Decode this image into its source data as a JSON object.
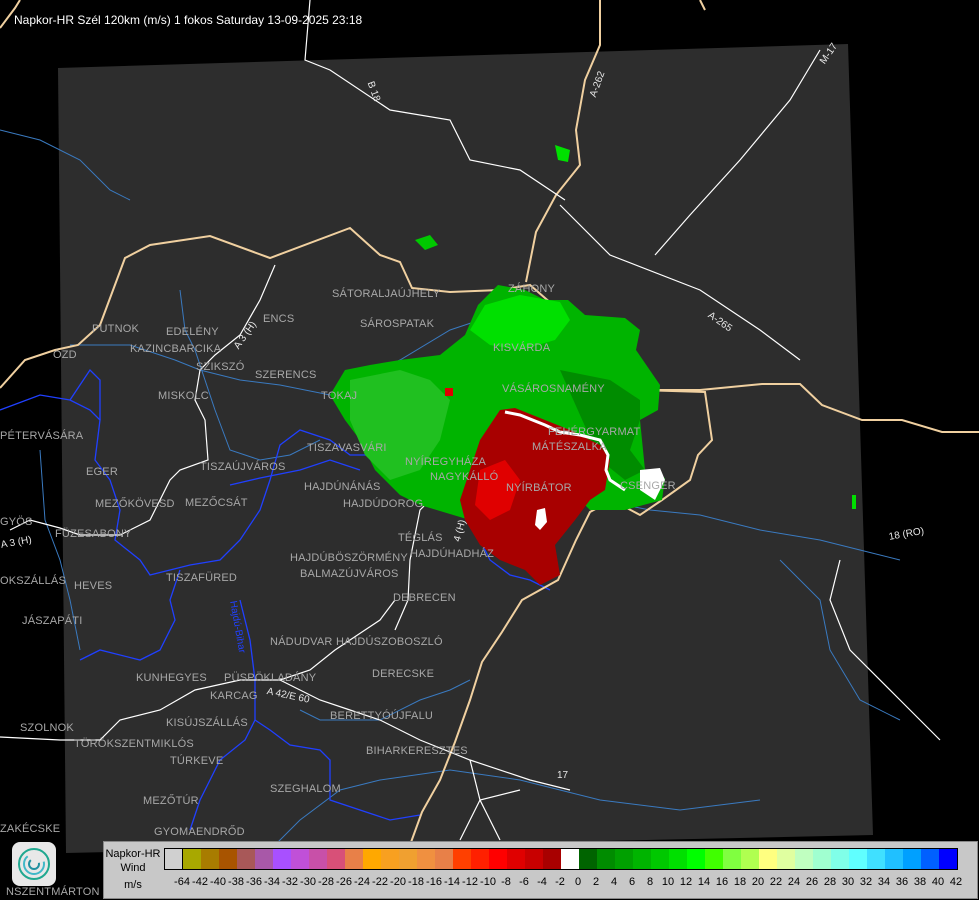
{
  "title": "Napkor-HR Szél 120km (m/s) 1 fokos Saturday 13-09-2025 23:18",
  "colors": {
    "background": "#000000",
    "radar_area": "#2d2d2d",
    "border": "#f0d0a0",
    "county": "#2040ff",
    "river": "#3a7ac0",
    "road": "#ffffff",
    "city_label": "#a8a8a8"
  },
  "cities": [
    "SÁTORALJAÚJHELY",
    "SÁROSPATAK",
    "ZÁHONY",
    "KISVÁRDA",
    "VÁSÁROSNAMÉNY",
    "FEHÉRGYARMAT",
    "MÁTÉSZALKA",
    "CSENGER",
    "NYÍRBÁTOR",
    "NYÍREGYHÁZA",
    "NAGYKÁLLÓ",
    "TOKAJ",
    "TISZAVASVÁRI",
    "HAJDÚNÁNÁS",
    "HAJDÚDOROG",
    "TÉGLÁS",
    "HAJDÚHADHÁZ",
    "HAJDÚBÖSZÖRMÉNY",
    "BALMAZÚJVÁROS",
    "DEBRECEN",
    "PUTNOK",
    "EDELÉNY",
    "KAZINCBARCIKA",
    "SZIKSZÓ",
    "SZERENCS",
    "ENCS",
    "MISKOLC",
    "ÓZD",
    "PÉTERVÁSÁRA",
    "EGER",
    "TISZAÚJVÁROS",
    "MEZŐKÖVESD",
    "MEZŐCSÁT",
    "GYÖS",
    "FÜZESABONY",
    "HEVES",
    "OKSZÁLLÁS",
    "TISZAFÜRED",
    "JÁSZAPÁTI",
    "NÁDUDVAR",
    "HAJDÚSZOBOSZLÓ",
    "DERECSKE",
    "KUNHEGYES",
    "KARCAG",
    "PÜSPÖKLADÁNY",
    "BERETTYÓÚJFALU",
    "KISÚJSZÁLLÁS",
    "SZOLNOK",
    "TÖRÖKSZENTMIKLÓS",
    "BIHARKERESZTES",
    "TÚRKEVE",
    "SZEGHALOM",
    "MEZŐTÚR",
    "GYOMAENDRŐD",
    "ZAKÉCSKE",
    "NSZENTMÁRTON"
  ],
  "roads": [
    "B 18",
    "A-262",
    "M-17",
    "A-265",
    "18 (RO)",
    "A 3 (H)",
    "A 3 (H)",
    "4 (H)",
    "A 42/E 60",
    "17",
    "Hajdú-Bihar"
  ],
  "legend": {
    "name": "Napkor-HR\nWind",
    "name_line1": "Napkor-HR",
    "name_line2": "Wind",
    "unit": "m/s",
    "ticks": [
      "-64",
      "-42",
      "-40",
      "-38",
      "-36",
      "-34",
      "-32",
      "-30",
      "-28",
      "-26",
      "-24",
      "-22",
      "-20",
      "-18",
      "-16",
      "-14",
      "-12",
      "-10",
      "-8",
      "-6",
      "-4",
      "-2",
      "0",
      "2",
      "4",
      "6",
      "8",
      "10",
      "12",
      "14",
      "16",
      "18",
      "20",
      "22",
      "24",
      "26",
      "28",
      "30",
      "32",
      "34",
      "36",
      "38",
      "40",
      "42"
    ],
    "colors": [
      "#a8a800",
      "#a87c00",
      "#a85400",
      "#a85858",
      "#a858a8",
      "#a850ff",
      "#c050d8",
      "#c850a8",
      "#d85078",
      "#e88048",
      "#ffa800",
      "#f8a020",
      "#f0a030",
      "#f09040",
      "#e88048",
      "#ff4000",
      "#ff2000",
      "#ff0000",
      "#e00000",
      "#c80000",
      "#a80000",
      "#ffffff",
      "#006400",
      "#008c00",
      "#00a000",
      "#00b400",
      "#00c800",
      "#00e000",
      "#00ff00",
      "#40ff00",
      "#80ff40",
      "#b0ff50",
      "#ffff80",
      "#e0ffa0",
      "#c0ffc0",
      "#a0ffd0",
      "#80ffe8",
      "#60ffff",
      "#40e0ff",
      "#20c0ff",
      "#00a0ff",
      "#0060ff",
      "#0000ff"
    ]
  }
}
